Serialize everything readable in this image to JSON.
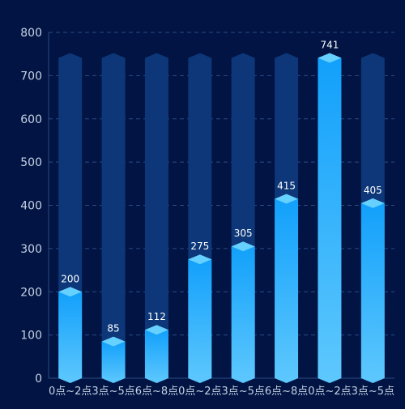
{
  "colors": {
    "background": "#011443",
    "track": "#0d3778",
    "bar_top": "#12a0fb",
    "bar_bottom": "#5ec8fd",
    "cap": "#66d0ff",
    "grid": "#2c4c86",
    "axis_text": "#c7d2e4",
    "label_text": "#ffffff"
  },
  "chart_data": {
    "type": "bar",
    "categories": [
      "0点~2点",
      "3点~5点",
      "6点~8点",
      "0点~2点",
      "3点~5点",
      "6点~8点",
      "0点~2点",
      "3点~5点"
    ],
    "values": [
      200,
      85,
      112,
      275,
      305,
      415,
      741,
      405
    ],
    "data_labels": [
      "200",
      "85",
      "112",
      "275",
      "305",
      "415",
      "741",
      "405"
    ],
    "track_value": 741,
    "ylim": [
      0,
      800
    ],
    "yticks": [
      "0",
      "100",
      "200",
      "300",
      "400",
      "500",
      "600",
      "700",
      "800"
    ],
    "grid": true,
    "legend": "none"
  }
}
